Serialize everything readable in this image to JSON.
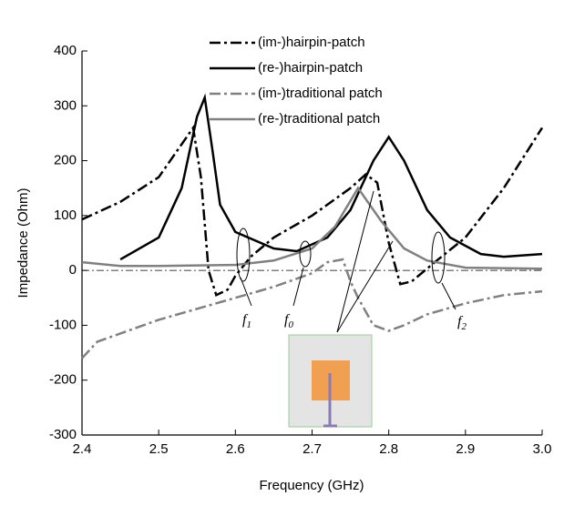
{
  "chart_data": {
    "type": "line",
    "xlabel": "Frequency (GHz)",
    "ylabel": "Impedance (Ohm)",
    "xlim": [
      2.4,
      3.0
    ],
    "ylim": [
      -300,
      400
    ],
    "xticks": [
      2.4,
      2.5,
      2.6,
      2.7,
      2.8,
      2.9,
      {
        "value": 3,
        "label": "3.0"
      }
    ],
    "yticks": [
      -300,
      -200,
      -100,
      0,
      100,
      200,
      300,
      400
    ],
    "series": [
      {
        "name": "(im-)hairpin-patch",
        "color": "#000000",
        "dash": true,
        "x": [
          2.4,
          2.45,
          2.5,
          2.53,
          2.545,
          2.555,
          2.565,
          2.575,
          2.59,
          2.6,
          2.62,
          2.65,
          2.7,
          2.75,
          2.77,
          2.785,
          2.8,
          2.815,
          2.83,
          2.86,
          2.9,
          2.95,
          3.0
        ],
        "values": [
          93,
          125,
          170,
          230,
          260,
          170,
          0,
          -45,
          -35,
          -10,
          25,
          60,
          100,
          150,
          175,
          160,
          50,
          -25,
          -20,
          15,
          60,
          150,
          260
        ]
      },
      {
        "name": "(re-)hairpin-patch",
        "color": "#000000",
        "dash": false,
        "x": [
          2.45,
          2.5,
          2.53,
          2.55,
          2.56,
          2.57,
          2.58,
          2.6,
          2.65,
          2.68,
          2.72,
          2.75,
          2.78,
          2.8,
          2.82,
          2.85,
          2.88,
          2.92,
          2.95,
          3.0
        ],
        "values": [
          20,
          60,
          150,
          280,
          315,
          220,
          120,
          70,
          40,
          35,
          60,
          110,
          200,
          243,
          200,
          110,
          60,
          30,
          25,
          30
        ]
      },
      {
        "name": "(im-)traditional patch",
        "color": "#808080",
        "dash": true,
        "x": [
          2.4,
          2.42,
          2.5,
          2.6,
          2.65,
          2.7,
          2.72,
          2.74,
          2.75,
          2.76,
          2.78,
          2.8,
          2.82,
          2.85,
          2.9,
          2.95,
          3.0
        ],
        "values": [
          -160,
          -130,
          -90,
          -50,
          -30,
          -5,
          15,
          20,
          -20,
          -50,
          -100,
          -110,
          -100,
          -80,
          -60,
          -45,
          -38
        ]
      },
      {
        "name": "(re-)traditional patch",
        "color": "#808080",
        "dash": false,
        "x": [
          2.4,
          2.45,
          2.5,
          2.6,
          2.65,
          2.7,
          2.73,
          2.76,
          2.79,
          2.82,
          2.85,
          2.9,
          3.0
        ],
        "values": [
          15,
          8,
          8,
          10,
          18,
          40,
          80,
          150,
          90,
          40,
          18,
          5,
          3
        ]
      }
    ],
    "annotations": [
      {
        "text": "f",
        "sub": "1"
      },
      {
        "text": "f",
        "sub": "0"
      },
      {
        "text": "f",
        "sub": "2"
      }
    ]
  }
}
